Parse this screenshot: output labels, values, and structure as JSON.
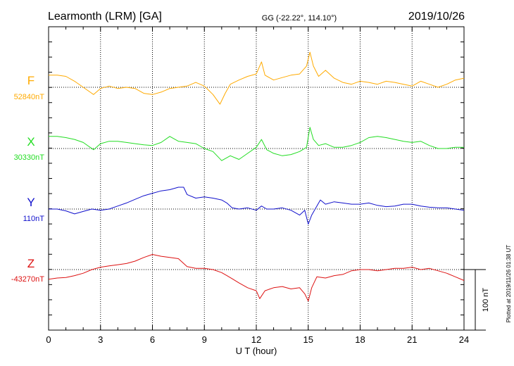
{
  "header": {
    "station": "Learmonth (LRM)  [GA]",
    "coords": "GG (-22.22°, 114.10°)",
    "date": "2019/10/26"
  },
  "footer": {
    "plotted": "Plotted at 2019/11/26 01:38 UT"
  },
  "chart_data": {
    "type": "line",
    "title": "",
    "xlabel": "U T (hour)",
    "ylabel": "",
    "xlim": [
      0,
      24
    ],
    "xticks": [
      0,
      3,
      6,
      9,
      12,
      15,
      18,
      21,
      24
    ],
    "grid": true,
    "scale_bar": {
      "value_nT": 100,
      "label": "100 nT"
    },
    "series": [
      {
        "name": "F",
        "baseline_label": "52840nT",
        "baseline_nT": 52840,
        "color": "#ffaa00",
        "points": [
          [
            0,
            52860
          ],
          [
            0.5,
            52860
          ],
          [
            1,
            52858
          ],
          [
            1.5,
            52850
          ],
          [
            2,
            52840
          ],
          [
            2.4,
            52832
          ],
          [
            2.6,
            52828
          ],
          [
            3,
            52838
          ],
          [
            3.5,
            52842
          ],
          [
            4,
            52838
          ],
          [
            4.5,
            52840
          ],
          [
            5,
            52838
          ],
          [
            5.5,
            52830
          ],
          [
            6,
            52828
          ],
          [
            6.5,
            52832
          ],
          [
            7,
            52838
          ],
          [
            7.5,
            52840
          ],
          [
            8,
            52842
          ],
          [
            8.5,
            52848
          ],
          [
            9,
            52842
          ],
          [
            9.5,
            52828
          ],
          [
            9.9,
            52812
          ],
          [
            10.2,
            52830
          ],
          [
            10.5,
            52845
          ],
          [
            11,
            52852
          ],
          [
            11.5,
            52858
          ],
          [
            12,
            52862
          ],
          [
            12.3,
            52882
          ],
          [
            12.5,
            52860
          ],
          [
            13,
            52852
          ],
          [
            13.5,
            52856
          ],
          [
            14,
            52860
          ],
          [
            14.5,
            52862
          ],
          [
            14.9,
            52875
          ],
          [
            15.1,
            52898
          ],
          [
            15.3,
            52875
          ],
          [
            15.6,
            52858
          ],
          [
            16,
            52868
          ],
          [
            16.5,
            52855
          ],
          [
            17,
            52848
          ],
          [
            17.5,
            52845
          ],
          [
            18,
            52850
          ],
          [
            18.5,
            52848
          ],
          [
            19,
            52845
          ],
          [
            19.5,
            52850
          ],
          [
            20,
            52848
          ],
          [
            20.5,
            52845
          ],
          [
            21,
            52842
          ],
          [
            21.5,
            52850
          ],
          [
            22,
            52845
          ],
          [
            22.5,
            52840
          ],
          [
            23,
            52845
          ],
          [
            23.5,
            52852
          ],
          [
            24,
            52855
          ]
        ]
      },
      {
        "name": "X",
        "baseline_label": "30330nT",
        "baseline_nT": 30330,
        "color": "#22dd22",
        "points": [
          [
            0,
            30350
          ],
          [
            0.5,
            30350
          ],
          [
            1,
            30348
          ],
          [
            1.5,
            30345
          ],
          [
            2,
            30340
          ],
          [
            2.4,
            30332
          ],
          [
            2.6,
            30328
          ],
          [
            3,
            30338
          ],
          [
            3.5,
            30342
          ],
          [
            4,
            30342
          ],
          [
            4.5,
            30340
          ],
          [
            5,
            30338
          ],
          [
            5.5,
            30336
          ],
          [
            6,
            30335
          ],
          [
            6.5,
            30340
          ],
          [
            7,
            30350
          ],
          [
            7.5,
            30342
          ],
          [
            8,
            30340
          ],
          [
            8.5,
            30338
          ],
          [
            9,
            30330
          ],
          [
            9.5,
            30325
          ],
          [
            10,
            30310
          ],
          [
            10.5,
            30318
          ],
          [
            11,
            30312
          ],
          [
            11.5,
            30322
          ],
          [
            12,
            30332
          ],
          [
            12.3,
            30345
          ],
          [
            12.6,
            30328
          ],
          [
            13,
            30322
          ],
          [
            13.5,
            30318
          ],
          [
            14,
            30320
          ],
          [
            14.5,
            30325
          ],
          [
            14.9,
            30332
          ],
          [
            15.1,
            30365
          ],
          [
            15.3,
            30345
          ],
          [
            15.6,
            30335
          ],
          [
            16,
            30338
          ],
          [
            16.5,
            30332
          ],
          [
            17,
            30332
          ],
          [
            17.5,
            30335
          ],
          [
            18,
            30340
          ],
          [
            18.5,
            30348
          ],
          [
            19,
            30350
          ],
          [
            19.5,
            30348
          ],
          [
            20,
            30345
          ],
          [
            20.5,
            30342
          ],
          [
            21,
            30340
          ],
          [
            21.5,
            30342
          ],
          [
            22,
            30335
          ],
          [
            22.5,
            30330
          ],
          [
            23,
            30330
          ],
          [
            23.5,
            30332
          ],
          [
            24,
            30332
          ]
        ]
      },
      {
        "name": "Y",
        "baseline_label": "110nT",
        "baseline_nT": 110,
        "color": "#1010cc",
        "points": [
          [
            0,
            110
          ],
          [
            0.5,
            110
          ],
          [
            1,
            107
          ],
          [
            1.5,
            102
          ],
          [
            2,
            106
          ],
          [
            2.5,
            110
          ],
          [
            3,
            108
          ],
          [
            3.5,
            110
          ],
          [
            4,
            115
          ],
          [
            4.5,
            120
          ],
          [
            5,
            126
          ],
          [
            5.5,
            132
          ],
          [
            6,
            136
          ],
          [
            6.5,
            140
          ],
          [
            7,
            142
          ],
          [
            7.5,
            146
          ],
          [
            7.8,
            146
          ],
          [
            8,
            134
          ],
          [
            8.5,
            128
          ],
          [
            9,
            130
          ],
          [
            9.5,
            128
          ],
          [
            10,
            125
          ],
          [
            10.3,
            120
          ],
          [
            10.6,
            112
          ],
          [
            11,
            110
          ],
          [
            11.5,
            112
          ],
          [
            12,
            108
          ],
          [
            12.3,
            115
          ],
          [
            12.6,
            110
          ],
          [
            13,
            110
          ],
          [
            13.5,
            112
          ],
          [
            14,
            108
          ],
          [
            14.5,
            100
          ],
          [
            14.8,
            108
          ],
          [
            15,
            85
          ],
          [
            15.2,
            100
          ],
          [
            15.4,
            110
          ],
          [
            15.7,
            125
          ],
          [
            16,
            118
          ],
          [
            16.5,
            122
          ],
          [
            17,
            120
          ],
          [
            17.5,
            118
          ],
          [
            18,
            118
          ],
          [
            18.5,
            120
          ],
          [
            19,
            116
          ],
          [
            19.5,
            114
          ],
          [
            20,
            115
          ],
          [
            20.5,
            118
          ],
          [
            21,
            118
          ],
          [
            21.5,
            115
          ],
          [
            22,
            113
          ],
          [
            22.5,
            112
          ],
          [
            23,
            112
          ],
          [
            23.5,
            110
          ],
          [
            24,
            108
          ]
        ]
      },
      {
        "name": "Z",
        "baseline_label": "-43270nT",
        "baseline_nT": -43270,
        "color": "#dd1111",
        "points": [
          [
            0,
            -43286
          ],
          [
            0.5,
            -43284
          ],
          [
            1,
            -43283
          ],
          [
            1.5,
            -43280
          ],
          [
            2,
            -43276
          ],
          [
            2.5,
            -43270
          ],
          [
            3,
            -43266
          ],
          [
            3.5,
            -43264
          ],
          [
            4,
            -43262
          ],
          [
            4.5,
            -43260
          ],
          [
            5,
            -43256
          ],
          [
            5.5,
            -43250
          ],
          [
            6,
            -43245
          ],
          [
            6.5,
            -43248
          ],
          [
            7,
            -43250
          ],
          [
            7.5,
            -43252
          ],
          [
            8,
            -43265
          ],
          [
            8.5,
            -43268
          ],
          [
            9,
            -43268
          ],
          [
            9.5,
            -43270
          ],
          [
            10,
            -43275
          ],
          [
            10.3,
            -43280
          ],
          [
            10.6,
            -43285
          ],
          [
            11,
            -43292
          ],
          [
            11.5,
            -43300
          ],
          [
            12,
            -43305
          ],
          [
            12.2,
            -43318
          ],
          [
            12.5,
            -43305
          ],
          [
            13,
            -43300
          ],
          [
            13.5,
            -43298
          ],
          [
            14,
            -43302
          ],
          [
            14.5,
            -43300
          ],
          [
            14.8,
            -43310
          ],
          [
            15,
            -43322
          ],
          [
            15.2,
            -43300
          ],
          [
            15.5,
            -43282
          ],
          [
            16,
            -43284
          ],
          [
            16.5,
            -43280
          ],
          [
            17,
            -43278
          ],
          [
            17.5,
            -43272
          ],
          [
            18,
            -43270
          ],
          [
            18.5,
            -43270
          ],
          [
            19,
            -43272
          ],
          [
            19.5,
            -43270
          ],
          [
            20,
            -43268
          ],
          [
            20.5,
            -43268
          ],
          [
            21,
            -43266
          ],
          [
            21.5,
            -43270
          ],
          [
            22,
            -43268
          ],
          [
            22.5,
            -43272
          ],
          [
            23,
            -43276
          ],
          [
            23.5,
            -43282
          ],
          [
            24,
            -43288
          ]
        ]
      }
    ]
  }
}
